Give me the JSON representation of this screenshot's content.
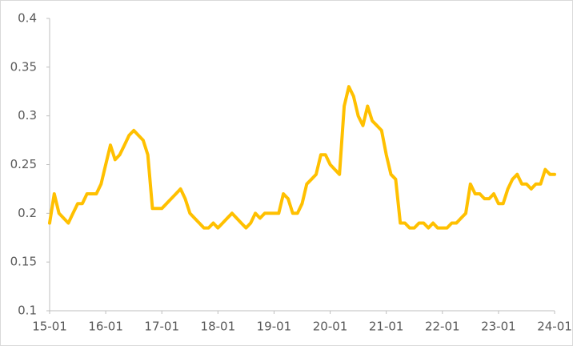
{
  "chart_data": {
    "type": "line",
    "categories": [
      "15-01",
      null,
      null,
      null,
      null,
      null,
      null,
      null,
      null,
      null,
      null,
      null,
      "16-01",
      null,
      null,
      null,
      null,
      null,
      null,
      null,
      null,
      null,
      null,
      null,
      "17-01",
      null,
      null,
      null,
      null,
      null,
      null,
      null,
      null,
      null,
      null,
      null,
      "18-01",
      null,
      null,
      null,
      null,
      null,
      null,
      null,
      null,
      null,
      null,
      null,
      "19-01",
      null,
      null,
      null,
      null,
      null,
      null,
      null,
      null,
      null,
      null,
      null,
      "20-01",
      null,
      null,
      null,
      null,
      null,
      null,
      null,
      null,
      null,
      null,
      null,
      "21-01",
      null,
      null,
      null,
      null,
      null,
      null,
      null,
      null,
      null,
      null,
      null,
      "22-01",
      null,
      null,
      null,
      null,
      null,
      null,
      null,
      null,
      null,
      null,
      null,
      "23-01",
      null,
      null,
      null,
      null,
      null,
      null,
      null,
      null,
      null,
      null,
      null,
      "24-01"
    ],
    "series": [
      {
        "color": "#FFC000",
        "values": [
          0.19,
          0.22,
          0.2,
          0.195,
          0.19,
          0.2,
          0.21,
          0.21,
          0.22,
          0.22,
          0.22,
          0.23,
          0.25,
          0.27,
          0.255,
          0.26,
          0.27,
          0.28,
          0.285,
          0.28,
          0.275,
          0.26,
          0.205,
          0.205,
          0.205,
          0.21,
          0.215,
          0.22,
          0.225,
          0.215,
          0.2,
          0.195,
          0.19,
          0.185,
          0.185,
          0.19,
          0.185,
          0.19,
          0.195,
          0.2,
          0.195,
          0.19,
          0.185,
          0.19,
          0.2,
          0.195,
          0.2,
          0.2,
          0.2,
          0.2,
          0.22,
          0.215,
          0.2,
          0.2,
          0.21,
          0.23,
          0.235,
          0.24,
          0.26,
          0.26,
          0.25,
          0.245,
          0.24,
          0.31,
          0.33,
          0.32,
          0.3,
          0.29,
          0.31,
          0.295,
          0.29,
          0.285,
          0.26,
          0.24,
          0.235,
          0.19,
          0.19,
          0.185,
          0.185,
          0.19,
          0.19,
          0.185,
          0.19,
          0.185,
          0.185,
          0.185,
          0.19,
          0.19,
          0.195,
          0.2,
          0.23,
          0.22,
          0.22,
          0.215,
          0.215,
          0.22,
          0.21,
          0.21,
          0.225,
          0.235,
          0.24,
          0.23,
          0.23,
          0.225,
          0.23,
          0.23,
          0.245,
          0.24,
          0.24
        ]
      }
    ],
    "ylim": [
      0.1,
      0.4
    ],
    "yticks": [
      0.1,
      0.15,
      0.2,
      0.25,
      0.3,
      0.35,
      0.4
    ]
  }
}
